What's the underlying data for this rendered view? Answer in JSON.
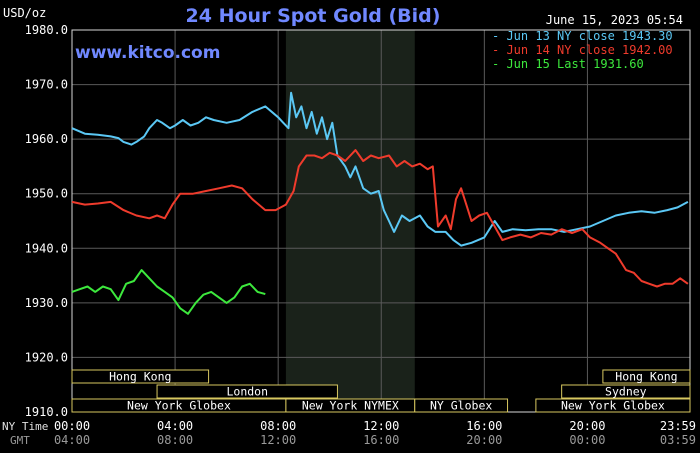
{
  "chart_data": {
    "type": "line",
    "title": "24 Hour Spot Gold (Bid)",
    "timestamp": "June 15, 2023 05:54",
    "site": "www.kitco.com",
    "ylabel": "USD/oz",
    "ylim": [
      1910,
      1980
    ],
    "yticks": [
      "1980.0",
      "1970.0",
      "1960.0",
      "1950.0",
      "1940.0",
      "1930.0",
      "1920.0",
      "1910.0"
    ],
    "grid": true,
    "legend_position": "top-right",
    "x_axis": {
      "ny_label": "NY Time",
      "gmt_label": "GMT",
      "ny_ticks": [
        "00:00",
        "04:00",
        "08:00",
        "12:00",
        "16:00",
        "20:00",
        "23:59"
      ],
      "gmt_ticks": [
        "04:00",
        "08:00",
        "12:00",
        "16:00",
        "20:00",
        "00:00",
        "03:59"
      ],
      "x_hours": [
        0,
        4,
        8,
        12,
        16,
        20,
        23.98
      ]
    },
    "shaded_region_hours": [
      8.3,
      13.3
    ],
    "sessions": [
      {
        "label": "Hong Kong",
        "start": 0,
        "end": 5.3,
        "row": 0
      },
      {
        "label": "Hong Kong",
        "start": 20.6,
        "end": 23.98,
        "row": 0
      },
      {
        "label": "London",
        "start": 3.3,
        "end": 10.3,
        "row": 1
      },
      {
        "label": "Sydney",
        "start": 19.0,
        "end": 23.98,
        "row": 1
      },
      {
        "label": "New York Globex",
        "start": 0,
        "end": 8.3,
        "row": 2
      },
      {
        "label": "New York NYMEX",
        "start": 8.3,
        "end": 13.3,
        "row": 2
      },
      {
        "label": "NY Globex",
        "start": 13.3,
        "end": 16.9,
        "row": 2
      },
      {
        "label": "New York Globex",
        "start": 18.0,
        "end": 23.98,
        "row": 2
      }
    ],
    "series": [
      {
        "name": "Jun 13 NY close 1943.30",
        "color": "#5bc8f5",
        "points": [
          [
            0,
            1962
          ],
          [
            0.5,
            1961
          ],
          [
            1,
            1960.8
          ],
          [
            1.5,
            1960.5
          ],
          [
            1.8,
            1960.2
          ],
          [
            2,
            1959.5
          ],
          [
            2.3,
            1959
          ],
          [
            2.5,
            1959.5
          ],
          [
            2.8,
            1960.5
          ],
          [
            3,
            1962
          ],
          [
            3.3,
            1963.5
          ],
          [
            3.5,
            1963
          ],
          [
            3.8,
            1962
          ],
          [
            4,
            1962.5
          ],
          [
            4.3,
            1963.5
          ],
          [
            4.6,
            1962.5
          ],
          [
            4.9,
            1963
          ],
          [
            5.2,
            1964
          ],
          [
            5.5,
            1963.5
          ],
          [
            6,
            1963
          ],
          [
            6.5,
            1963.5
          ],
          [
            7,
            1965
          ],
          [
            7.5,
            1966
          ],
          [
            8,
            1964
          ],
          [
            8.2,
            1963
          ],
          [
            8.4,
            1962
          ],
          [
            8.5,
            1968.5
          ],
          [
            8.7,
            1964
          ],
          [
            8.9,
            1966
          ],
          [
            9.1,
            1962
          ],
          [
            9.3,
            1965
          ],
          [
            9.5,
            1961
          ],
          [
            9.7,
            1964
          ],
          [
            9.9,
            1960
          ],
          [
            10.1,
            1963
          ],
          [
            10.3,
            1957
          ],
          [
            10.6,
            1955
          ],
          [
            10.8,
            1953
          ],
          [
            11,
            1955
          ],
          [
            11.3,
            1951
          ],
          [
            11.6,
            1950
          ],
          [
            11.9,
            1950.5
          ],
          [
            12.1,
            1947
          ],
          [
            12.3,
            1945
          ],
          [
            12.5,
            1943
          ],
          [
            12.8,
            1946
          ],
          [
            13.1,
            1945
          ],
          [
            13.5,
            1946
          ],
          [
            13.8,
            1944
          ],
          [
            14.1,
            1943
          ],
          [
            14.5,
            1943
          ],
          [
            14.8,
            1941.5
          ],
          [
            15.1,
            1940.5
          ],
          [
            15.5,
            1941
          ],
          [
            16,
            1942
          ],
          [
            16.4,
            1945
          ],
          [
            16.7,
            1943
          ],
          [
            17.1,
            1943.5
          ],
          [
            17.6,
            1943.3
          ],
          [
            18.1,
            1943.5
          ],
          [
            18.6,
            1943.5
          ],
          [
            19.1,
            1943
          ],
          [
            19.6,
            1943.5
          ],
          [
            20.1,
            1944
          ],
          [
            20.6,
            1945
          ],
          [
            21.1,
            1946
          ],
          [
            21.6,
            1946.5
          ],
          [
            22.1,
            1946.8
          ],
          [
            22.6,
            1946.5
          ],
          [
            23.1,
            1947
          ],
          [
            23.5,
            1947.5
          ],
          [
            23.9,
            1948.5
          ]
        ]
      },
      {
        "name": "Jun 14 NY close 1942.00",
        "color": "#ef3b2c",
        "points": [
          [
            0,
            1948.5
          ],
          [
            0.5,
            1948
          ],
          [
            1,
            1948.2
          ],
          [
            1.5,
            1948.5
          ],
          [
            2,
            1947
          ],
          [
            2.5,
            1946
          ],
          [
            3,
            1945.5
          ],
          [
            3.3,
            1946
          ],
          [
            3.6,
            1945.5
          ],
          [
            3.9,
            1948
          ],
          [
            4.2,
            1950
          ],
          [
            4.7,
            1950
          ],
          [
            5.2,
            1950.5
          ],
          [
            5.7,
            1951
          ],
          [
            6.2,
            1951.5
          ],
          [
            6.6,
            1951
          ],
          [
            7,
            1949
          ],
          [
            7.5,
            1947
          ],
          [
            7.9,
            1947
          ],
          [
            8.3,
            1948
          ],
          [
            8.6,
            1950.5
          ],
          [
            8.8,
            1955
          ],
          [
            9.1,
            1957
          ],
          [
            9.4,
            1957
          ],
          [
            9.7,
            1956.5
          ],
          [
            10,
            1957.5
          ],
          [
            10.3,
            1957
          ],
          [
            10.6,
            1956
          ],
          [
            11,
            1958
          ],
          [
            11.3,
            1956
          ],
          [
            11.6,
            1957
          ],
          [
            11.9,
            1956.5
          ],
          [
            12.3,
            1957
          ],
          [
            12.6,
            1955
          ],
          [
            12.9,
            1956
          ],
          [
            13.2,
            1955
          ],
          [
            13.5,
            1955.5
          ],
          [
            13.8,
            1954.5
          ],
          [
            14,
            1955
          ],
          [
            14.2,
            1944
          ],
          [
            14.5,
            1946
          ],
          [
            14.7,
            1943.5
          ],
          [
            14.9,
            1949
          ],
          [
            15.1,
            1951
          ],
          [
            15.3,
            1948
          ],
          [
            15.5,
            1945
          ],
          [
            15.8,
            1946
          ],
          [
            16.1,
            1946.5
          ],
          [
            16.4,
            1944
          ],
          [
            16.7,
            1941.5
          ],
          [
            17,
            1942
          ],
          [
            17.4,
            1942.5
          ],
          [
            17.8,
            1942
          ],
          [
            18.2,
            1942.8
          ],
          [
            18.6,
            1942.5
          ],
          [
            19,
            1943.5
          ],
          [
            19.4,
            1942.8
          ],
          [
            19.8,
            1943.5
          ],
          [
            20.1,
            1942
          ],
          [
            20.5,
            1941
          ],
          [
            20.8,
            1940
          ],
          [
            21.1,
            1939
          ],
          [
            21.5,
            1936
          ],
          [
            21.8,
            1935.5
          ],
          [
            22.1,
            1934
          ],
          [
            22.4,
            1933.5
          ],
          [
            22.7,
            1933
          ],
          [
            23,
            1933.5
          ],
          [
            23.3,
            1933.5
          ],
          [
            23.6,
            1934.5
          ],
          [
            23.9,
            1933.5
          ]
        ]
      },
      {
        "name": "Jun 15 Last 1931.60",
        "color": "#3de83d",
        "points": [
          [
            0,
            1932
          ],
          [
            0.3,
            1932.5
          ],
          [
            0.6,
            1933
          ],
          [
            0.9,
            1932
          ],
          [
            1.2,
            1933
          ],
          [
            1.5,
            1932.5
          ],
          [
            1.8,
            1930.5
          ],
          [
            2.1,
            1933.5
          ],
          [
            2.4,
            1934
          ],
          [
            2.7,
            1936
          ],
          [
            3,
            1934.5
          ],
          [
            3.3,
            1933
          ],
          [
            3.6,
            1932
          ],
          [
            3.9,
            1931
          ],
          [
            4.2,
            1929
          ],
          [
            4.5,
            1928
          ],
          [
            4.8,
            1930
          ],
          [
            5.1,
            1931.5
          ],
          [
            5.4,
            1932
          ],
          [
            5.7,
            1931
          ],
          [
            6.0,
            1930
          ],
          [
            6.3,
            1931
          ],
          [
            6.6,
            1933
          ],
          [
            6.9,
            1933.5
          ],
          [
            7.2,
            1932
          ],
          [
            7.5,
            1931.6
          ]
        ]
      }
    ]
  }
}
